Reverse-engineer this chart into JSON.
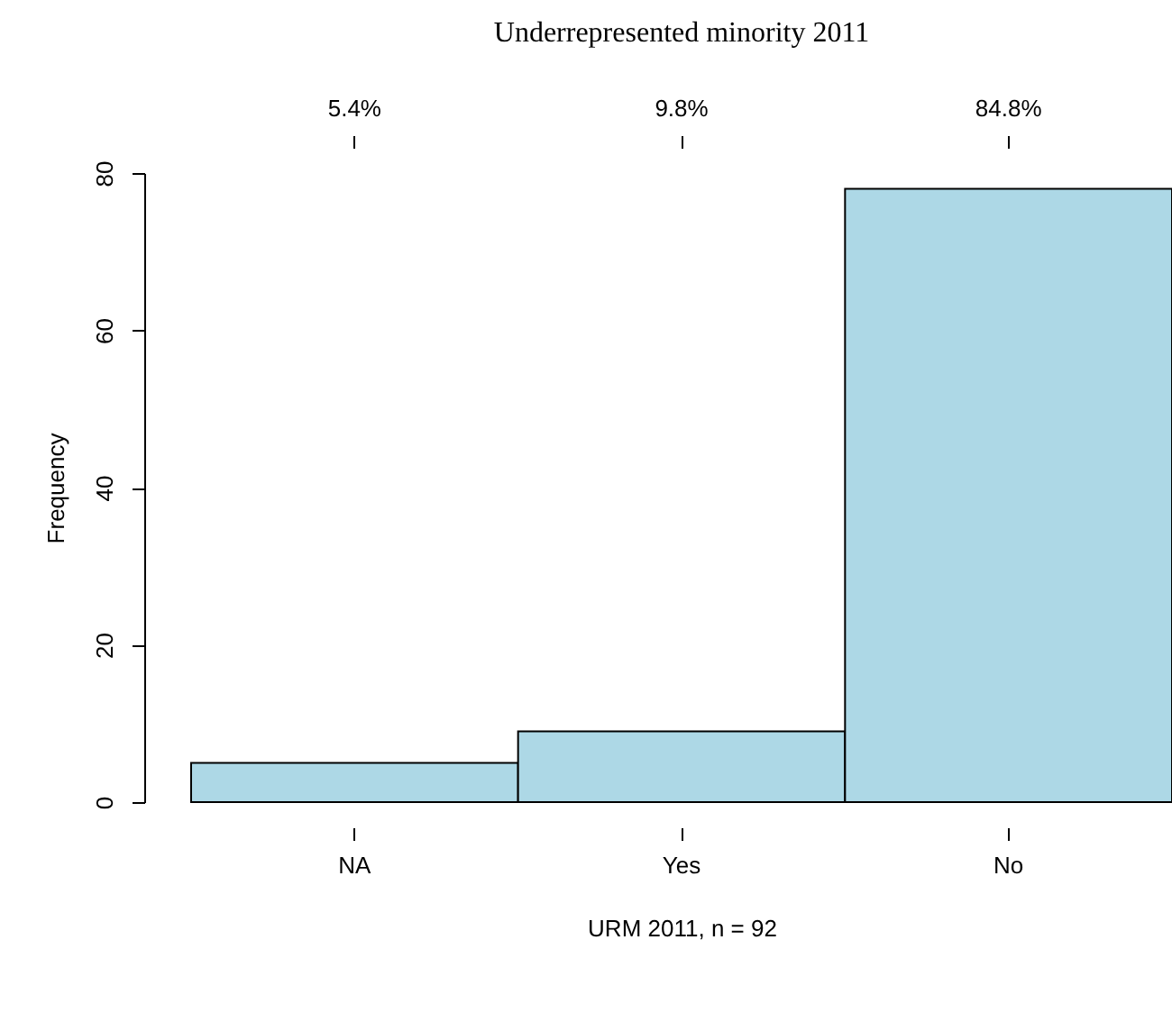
{
  "chart_data": {
    "type": "bar",
    "title": "Underrepresented minority 2011",
    "xlabel": "URM 2011, n = 92",
    "ylabel": "Frequency",
    "categories": [
      "NA",
      "Yes",
      "No"
    ],
    "values": [
      5,
      9,
      78
    ],
    "annotations": [
      {
        "text": "5.4%",
        "x": "NA"
      },
      {
        "text": "9.8%",
        "x": "Yes"
      },
      {
        "text": "84.8%",
        "x": "No"
      }
    ],
    "color": "#add8e6",
    "ylim": [
      0,
      80
    ],
    "yticks": [
      0,
      20,
      40,
      60,
      80
    ],
    "grid": false
  }
}
